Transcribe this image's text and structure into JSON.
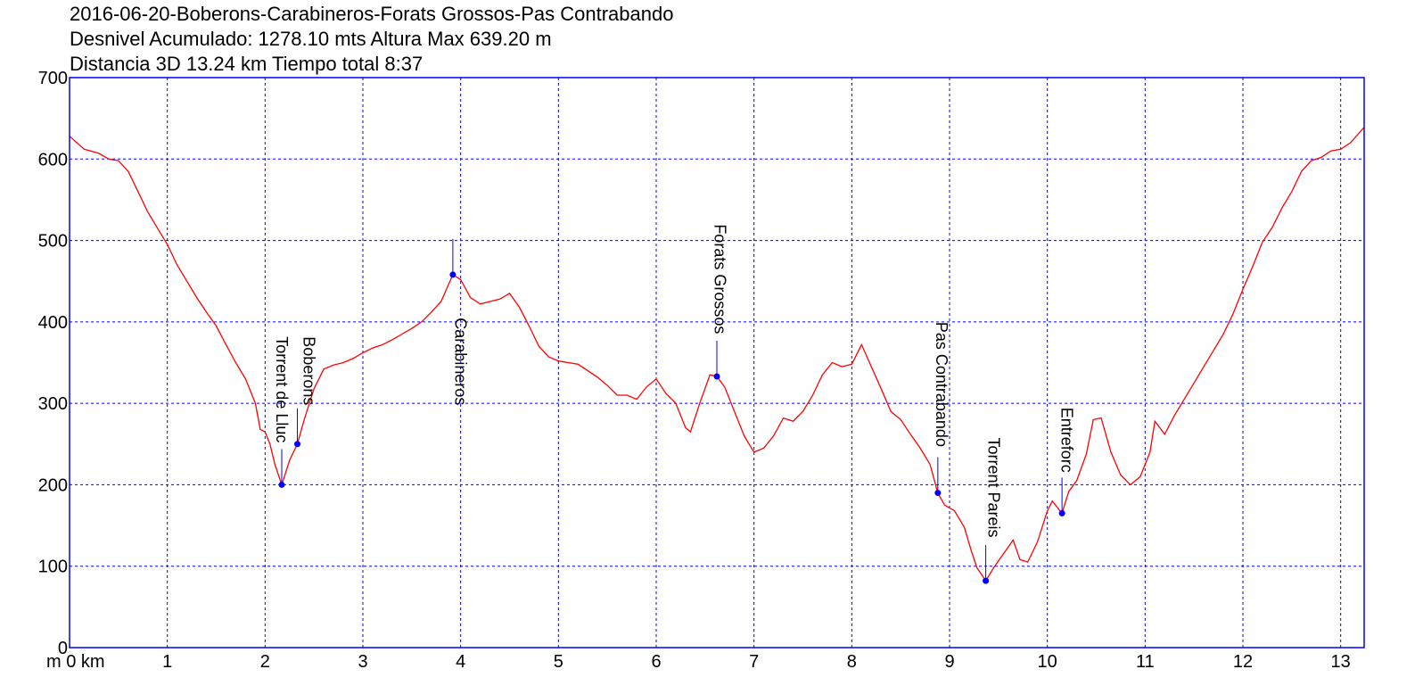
{
  "header": {
    "line1": "2016-06-20-Boberons-Carabineros-Forats Grossos-Pas Contrabando",
    "line2": "Desnivel Acumulado: 1278.10 mts  Altura Max 639.20 m",
    "line3": "Distancia 3D 13.24 km  Tiempo total 8:37"
  },
  "chart_data": {
    "type": "line",
    "x_unit_label": "m 0 km",
    "xlim": [
      0,
      13.24
    ],
    "ylim": [
      0,
      700
    ],
    "grid": true,
    "x_ticks": [
      0,
      1,
      2,
      3,
      4,
      5,
      6,
      7,
      8,
      9,
      10,
      11,
      12,
      13
    ],
    "x_tick_labels": [
      "m 0 km",
      "1",
      "2",
      "3",
      "4",
      "5",
      "6",
      "7",
      "8",
      "9",
      "10",
      "11",
      "12",
      "13"
    ],
    "y_ticks": [
      0,
      100,
      200,
      300,
      400,
      500,
      600,
      700
    ],
    "y_tick_labels": [
      "0",
      "100",
      "200",
      "300",
      "400",
      "500",
      "600",
      "700"
    ],
    "series": [
      {
        "color": "#ff0000",
        "points": [
          [
            0,
            628
          ],
          [
            0.15,
            612
          ],
          [
            0.3,
            607
          ],
          [
            0.4,
            600
          ],
          [
            0.5,
            598
          ],
          [
            0.6,
            585
          ],
          [
            0.7,
            560
          ],
          [
            0.8,
            535
          ],
          [
            0.9,
            515
          ],
          [
            1.0,
            495
          ],
          [
            1.1,
            470
          ],
          [
            1.2,
            450
          ],
          [
            1.3,
            430
          ],
          [
            1.4,
            412
          ],
          [
            1.5,
            395
          ],
          [
            1.6,
            372
          ],
          [
            1.7,
            350
          ],
          [
            1.8,
            330
          ],
          [
            1.9,
            300
          ],
          [
            1.95,
            268
          ],
          [
            2.0,
            265
          ],
          [
            2.05,
            250
          ],
          [
            2.1,
            225
          ],
          [
            2.17,
            200
          ],
          [
            2.25,
            230
          ],
          [
            2.33,
            250
          ],
          [
            2.4,
            280
          ],
          [
            2.5,
            318
          ],
          [
            2.6,
            342
          ],
          [
            2.7,
            347
          ],
          [
            2.8,
            350
          ],
          [
            2.9,
            355
          ],
          [
            3.0,
            362
          ],
          [
            3.1,
            368
          ],
          [
            3.2,
            372
          ],
          [
            3.3,
            378
          ],
          [
            3.4,
            385
          ],
          [
            3.5,
            392
          ],
          [
            3.6,
            400
          ],
          [
            3.7,
            412
          ],
          [
            3.8,
            425
          ],
          [
            3.92,
            458
          ],
          [
            4.0,
            452
          ],
          [
            4.1,
            430
          ],
          [
            4.2,
            422
          ],
          [
            4.3,
            425
          ],
          [
            4.4,
            428
          ],
          [
            4.5,
            435
          ],
          [
            4.6,
            418
          ],
          [
            4.7,
            395
          ],
          [
            4.8,
            370
          ],
          [
            4.9,
            357
          ],
          [
            5.0,
            352
          ],
          [
            5.1,
            350
          ],
          [
            5.2,
            348
          ],
          [
            5.3,
            340
          ],
          [
            5.4,
            332
          ],
          [
            5.5,
            322
          ],
          [
            5.6,
            310
          ],
          [
            5.7,
            310
          ],
          [
            5.8,
            305
          ],
          [
            5.9,
            320
          ],
          [
            6.0,
            330
          ],
          [
            6.1,
            312
          ],
          [
            6.2,
            300
          ],
          [
            6.3,
            270
          ],
          [
            6.35,
            265
          ],
          [
            6.45,
            302
          ],
          [
            6.55,
            335
          ],
          [
            6.62,
            333
          ],
          [
            6.7,
            320
          ],
          [
            6.8,
            290
          ],
          [
            6.9,
            260
          ],
          [
            7.0,
            240
          ],
          [
            7.1,
            245
          ],
          [
            7.2,
            260
          ],
          [
            7.3,
            282
          ],
          [
            7.4,
            278
          ],
          [
            7.5,
            290
          ],
          [
            7.6,
            310
          ],
          [
            7.7,
            335
          ],
          [
            7.8,
            350
          ],
          [
            7.9,
            345
          ],
          [
            8.0,
            348
          ],
          [
            8.1,
            372
          ],
          [
            8.2,
            345
          ],
          [
            8.3,
            318
          ],
          [
            8.4,
            290
          ],
          [
            8.5,
            280
          ],
          [
            8.6,
            262
          ],
          [
            8.7,
            245
          ],
          [
            8.8,
            225
          ],
          [
            8.88,
            190
          ],
          [
            8.95,
            175
          ],
          [
            9.05,
            168
          ],
          [
            9.15,
            148
          ],
          [
            9.22,
            120
          ],
          [
            9.28,
            98
          ],
          [
            9.37,
            82
          ],
          [
            9.45,
            98
          ],
          [
            9.55,
            115
          ],
          [
            9.65,
            132
          ],
          [
            9.72,
            108
          ],
          [
            9.8,
            105
          ],
          [
            9.9,
            130
          ],
          [
            10.0,
            168
          ],
          [
            10.05,
            180
          ],
          [
            10.15,
            165
          ],
          [
            10.22,
            192
          ],
          [
            10.3,
            205
          ],
          [
            10.4,
            238
          ],
          [
            10.47,
            280
          ],
          [
            10.55,
            282
          ],
          [
            10.65,
            240
          ],
          [
            10.75,
            212
          ],
          [
            10.85,
            200
          ],
          [
            10.95,
            210
          ],
          [
            11.05,
            240
          ],
          [
            11.1,
            278
          ],
          [
            11.2,
            262
          ],
          [
            11.3,
            285
          ],
          [
            11.4,
            305
          ],
          [
            11.5,
            325
          ],
          [
            11.6,
            345
          ],
          [
            11.7,
            365
          ],
          [
            11.8,
            385
          ],
          [
            11.9,
            410
          ],
          [
            12.0,
            440
          ],
          [
            12.1,
            468
          ],
          [
            12.2,
            498
          ],
          [
            12.3,
            516
          ],
          [
            12.4,
            540
          ],
          [
            12.5,
            560
          ],
          [
            12.6,
            585
          ],
          [
            12.7,
            598
          ],
          [
            12.8,
            602
          ],
          [
            12.9,
            610
          ],
          [
            13.0,
            612
          ],
          [
            13.1,
            620
          ],
          [
            13.24,
            639
          ]
        ]
      }
    ],
    "waypoints": [
      {
        "name": "Torrent de Lluc",
        "x": 2.17,
        "y": 200,
        "label_x": 2.17,
        "label_top_y": 382
      },
      {
        "name": "Boberons",
        "x": 2.33,
        "y": 250,
        "label_x": 2.45,
        "label_top_y": 382
      },
      {
        "name": "Carabineros",
        "x": 3.92,
        "y": 458,
        "label_x": 4.0,
        "label_top_y": 405
      },
      {
        "name": "Forats Grossos",
        "x": 6.62,
        "y": 333,
        "label_x": 6.65,
        "label_top_y": 520
      },
      {
        "name": "Pas Contrabando",
        "x": 8.88,
        "y": 190,
        "label_x": 8.92,
        "label_top_y": 400
      },
      {
        "name": "Torrent Pareis",
        "x": 9.37,
        "y": 82,
        "label_x": 9.45,
        "label_top_y": 258
      },
      {
        "name": "Entreforc",
        "x": 10.15,
        "y": 165,
        "label_x": 10.2,
        "label_top_y": 295
      }
    ]
  }
}
